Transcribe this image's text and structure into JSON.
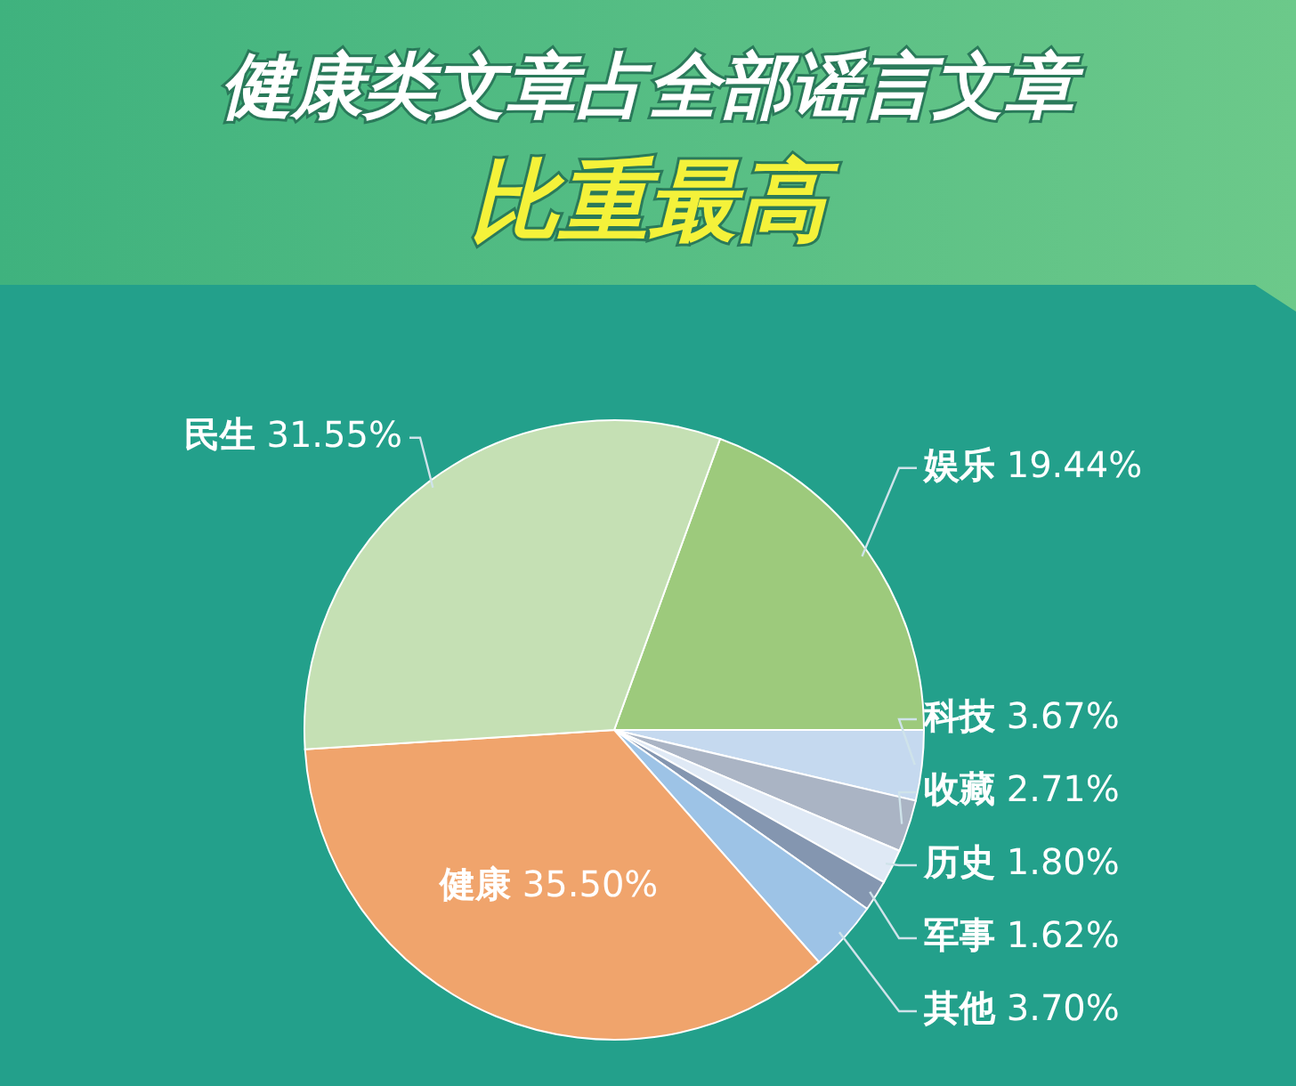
{
  "chart_data": {
    "type": "pie",
    "title": "健康类文章占全部谣言文章",
    "subtitle": "比重最高",
    "categories": [
      "娱乐",
      "科技",
      "收藏",
      "历史",
      "军事",
      "其他",
      "健康",
      "民生"
    ],
    "values": [
      19.44,
      3.67,
      2.71,
      1.8,
      1.62,
      3.7,
      35.5,
      31.55
    ],
    "value_labels": [
      "19.44%",
      "3.67%",
      "2.71%",
      "1.80%",
      "1.62%",
      "3.70%",
      "35.50%",
      "31.55%"
    ],
    "colors": [
      "#9dca7c",
      "#c5d9ef",
      "#aab4c4",
      "#dfe9f5",
      "#8496b0",
      "#9dc3e6",
      "#f0a46c",
      "#c5e0b4"
    ]
  }
}
